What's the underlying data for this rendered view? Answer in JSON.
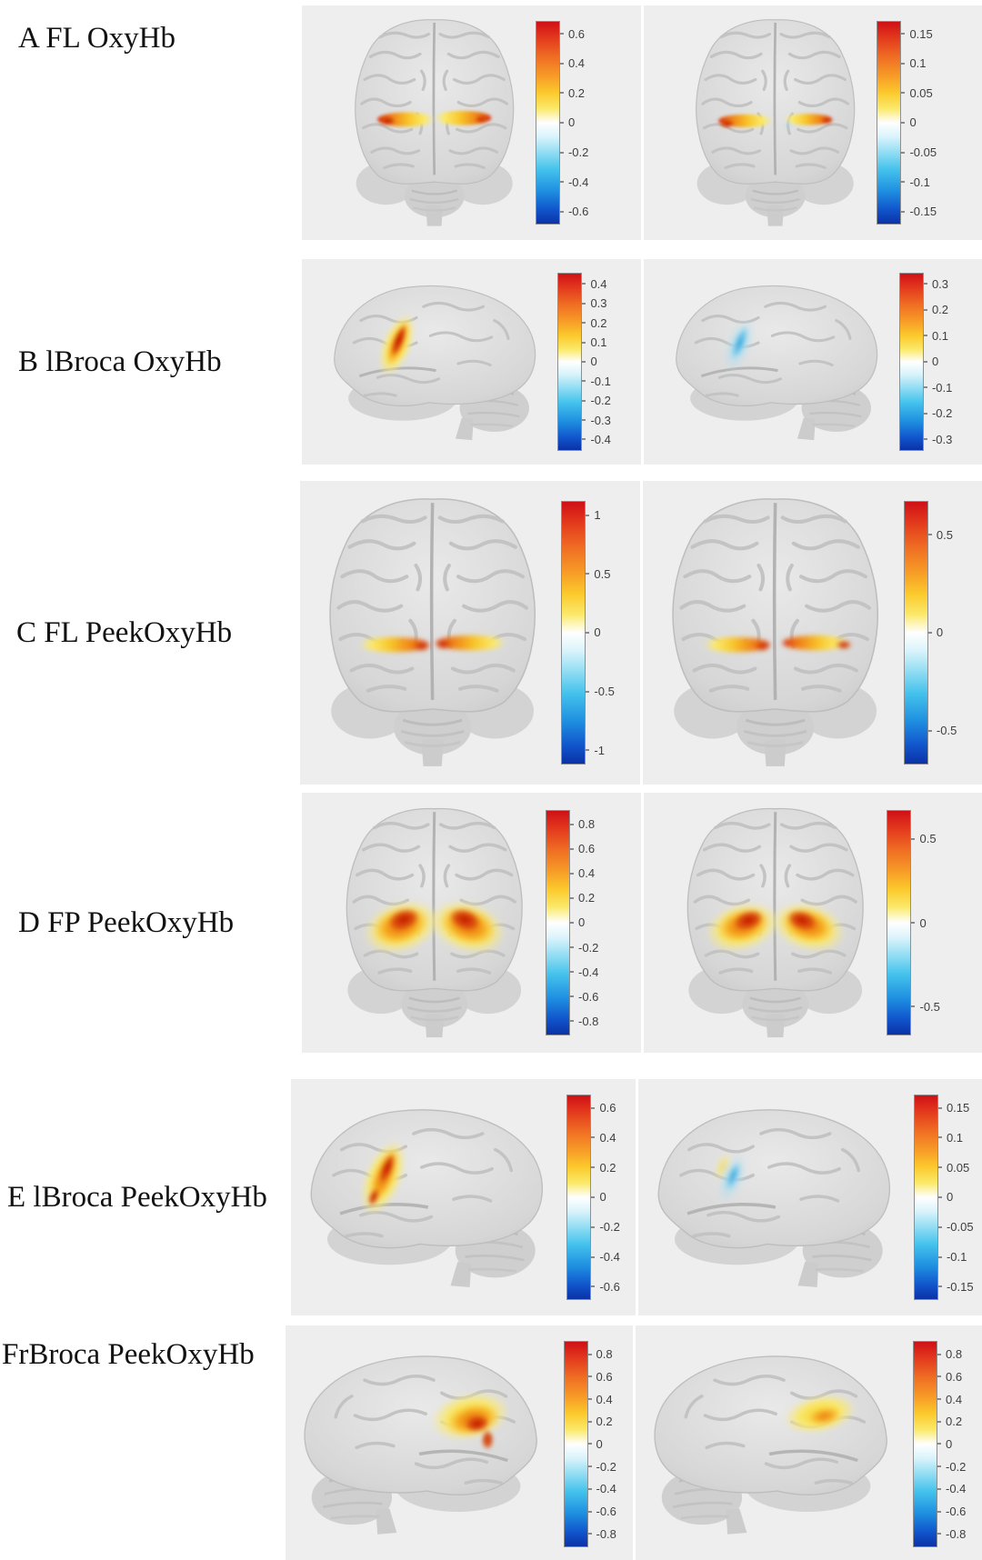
{
  "figure": {
    "description_visible": "Six-row brain activation figure, two brain renderings with diverging red-white-blue colorbars per row",
    "rows": [
      {
        "id": "A",
        "label": "A FL OxyHb",
        "view": "frontal",
        "panels": [
          {
            "side": "left",
            "colorbar_ticks": [
              "0.6",
              "0.4",
              "0.2",
              "0",
              "-0.2",
              "-0.4",
              "-0.6"
            ]
          },
          {
            "side": "right",
            "colorbar_ticks": [
              "0.15",
              "0.1",
              "0.05",
              "0",
              "-0.05",
              "-0.1",
              "-0.15"
            ]
          }
        ]
      },
      {
        "id": "B",
        "label": "B lBroca OxyHb",
        "view": "lateral-left",
        "panels": [
          {
            "side": "left",
            "colorbar_ticks": [
              "0.4",
              "0.3",
              "0.2",
              "0.1",
              "0",
              "-0.1",
              "-0.2",
              "-0.3",
              "-0.4"
            ]
          },
          {
            "side": "right",
            "colorbar_ticks": [
              "0.3",
              "0.2",
              "0.1",
              "0",
              "-0.1",
              "-0.2",
              "-0.3"
            ]
          }
        ]
      },
      {
        "id": "C",
        "label": "C FL PeekOxyHb",
        "view": "frontal",
        "panels": [
          {
            "side": "left",
            "colorbar_ticks": [
              "1",
              "0.5",
              "0",
              "-0.5",
              "-1"
            ]
          },
          {
            "side": "right",
            "colorbar_ticks": [
              "0.5",
              "0",
              "-0.5"
            ]
          }
        ]
      },
      {
        "id": "D",
        "label": "D FP PeekOxyHb",
        "view": "frontal",
        "panels": [
          {
            "side": "left",
            "colorbar_ticks": [
              "0.8",
              "0.6",
              "0.4",
              "0.2",
              "0",
              "-0.2",
              "-0.4",
              "-0.6",
              "-0.8"
            ]
          },
          {
            "side": "right",
            "colorbar_ticks": [
              "0.5",
              "0",
              "-0.5"
            ]
          }
        ]
      },
      {
        "id": "E",
        "label": "E lBroca PeekOxyHb",
        "view": "lateral-left",
        "panels": [
          {
            "side": "left",
            "colorbar_ticks": [
              "0.6",
              "0.4",
              "0.2",
              "0",
              "-0.2",
              "-0.4",
              "-0.6"
            ]
          },
          {
            "side": "right",
            "colorbar_ticks": [
              "0.15",
              "0.1",
              "0.05",
              "0",
              "-0.05",
              "-0.1",
              "-0.15"
            ]
          }
        ]
      },
      {
        "id": "F",
        "label": "FrBroca PeekOxyHb",
        "view": "lateral-right",
        "panels": [
          {
            "side": "left",
            "colorbar_ticks": [
              "0.8",
              "0.6",
              "0.4",
              "0.2",
              "0",
              "-0.2",
              "-0.4",
              "-0.6",
              "-0.8"
            ]
          },
          {
            "side": "right",
            "colorbar_ticks": [
              "0.8",
              "0.6",
              "0.4",
              "0.2",
              "0",
              "-0.2",
              "-0.4",
              "-0.6",
              "-0.8"
            ]
          }
        ]
      }
    ]
  },
  "colors": {
    "panel_background": "#eeeeee",
    "brain_gray": "#d6d6d6",
    "colorbar_top_red": "#cf1016",
    "colorbar_bottom_blue": "#0b32a6",
    "tick_text": "#3e3e3e"
  }
}
